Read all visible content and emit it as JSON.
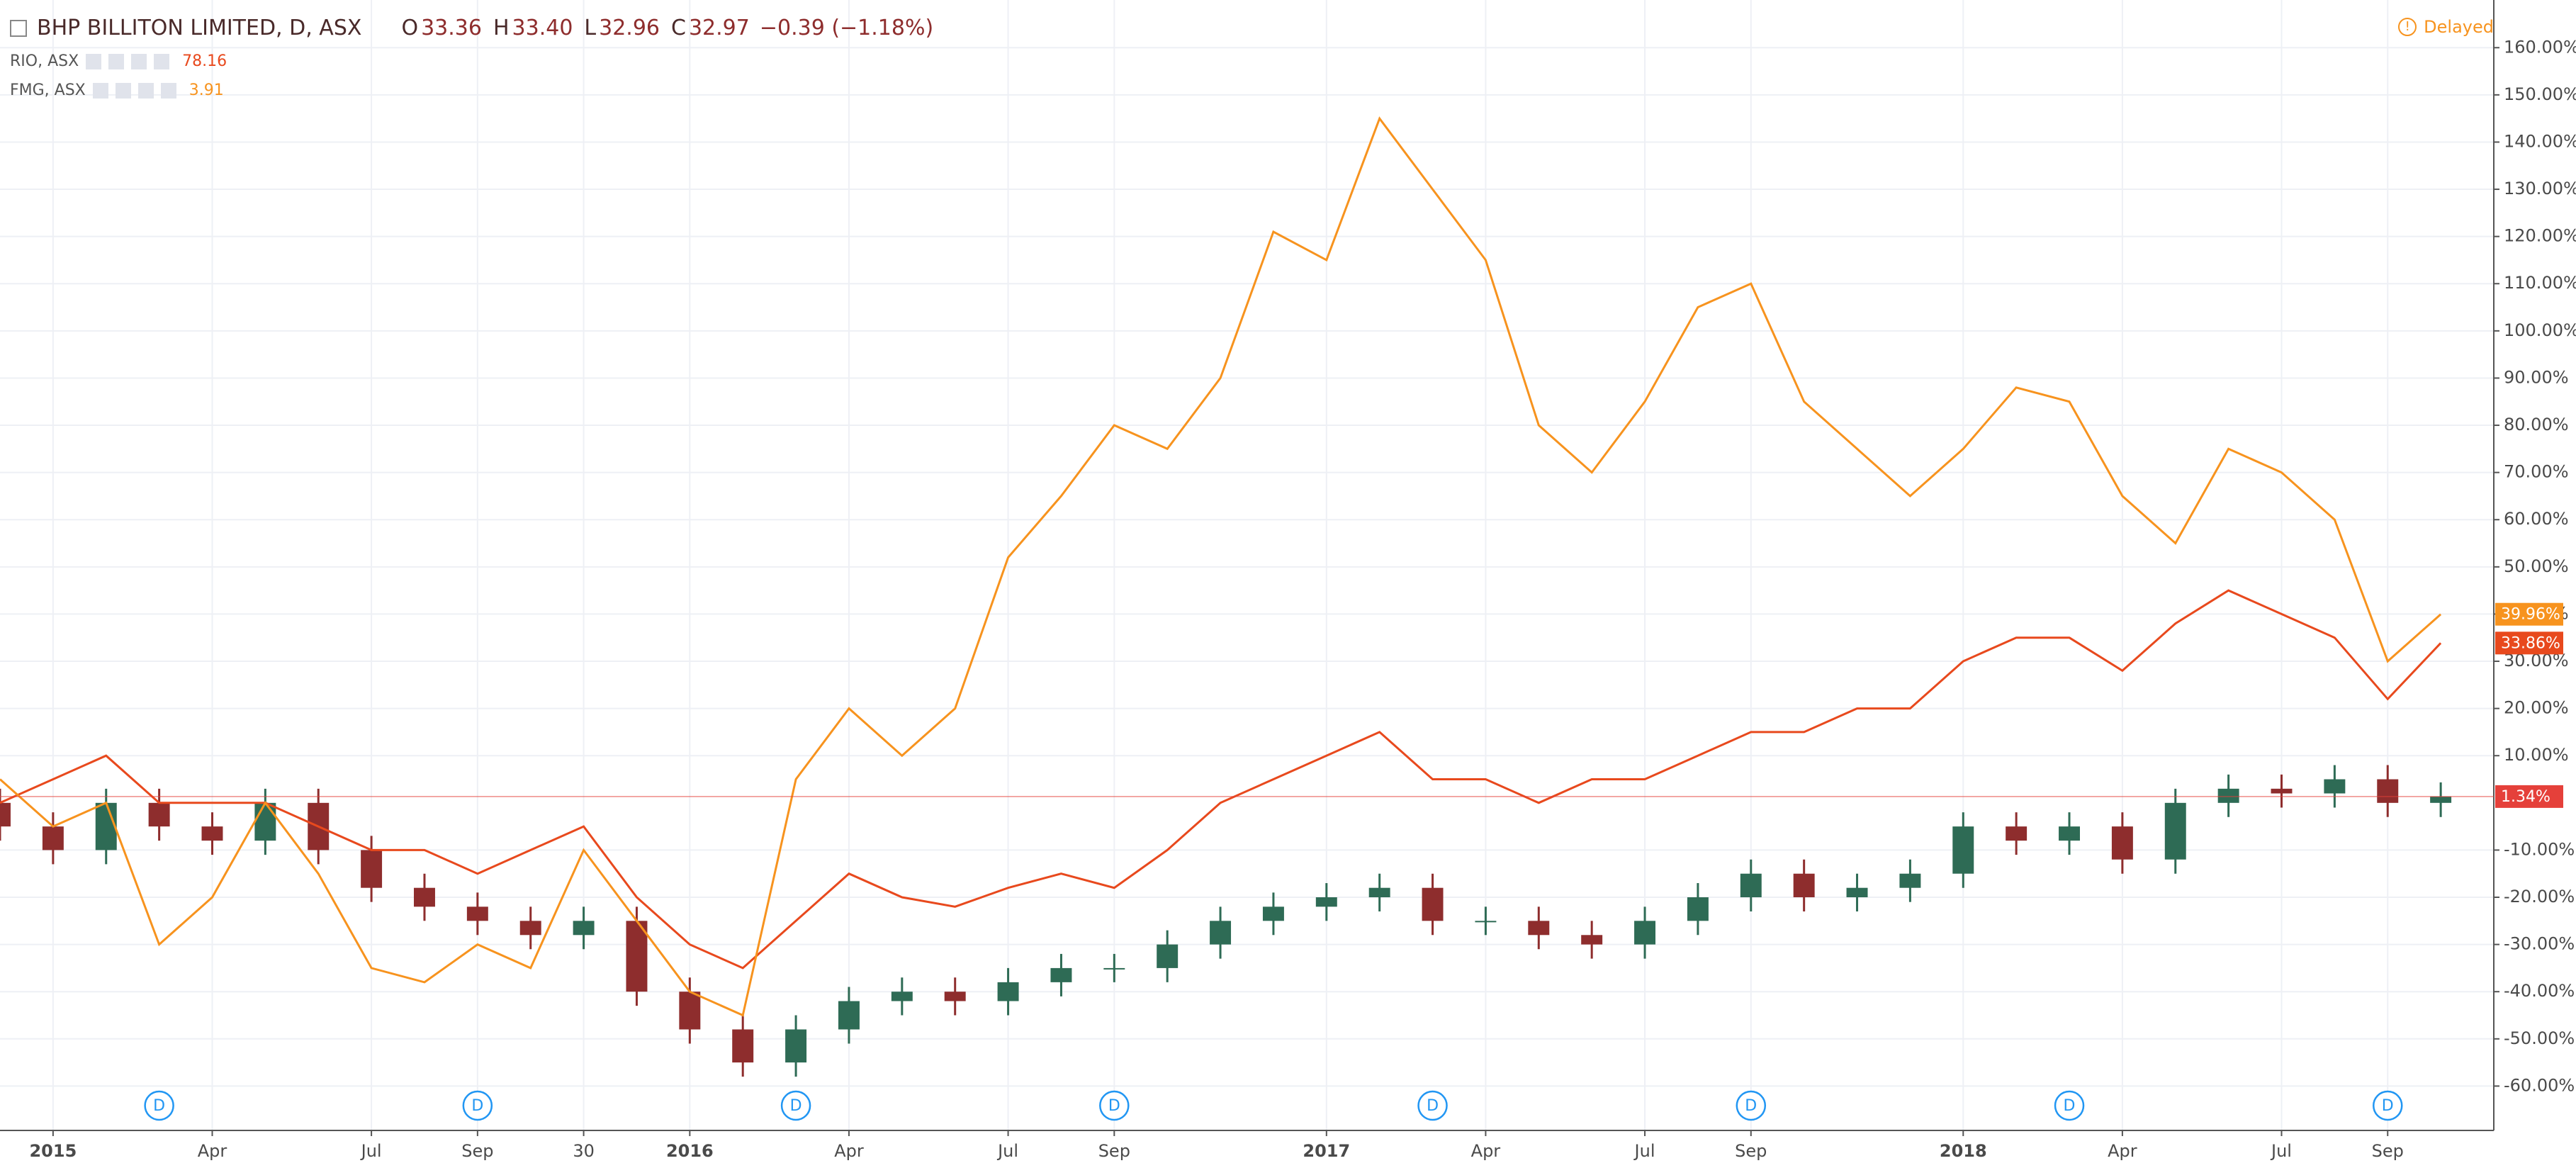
{
  "chart_data": {
    "type": "line",
    "title": "BHP BILLITON LIMITED, D, ASX",
    "ohlc_letters": [
      "O",
      "H",
      "L",
      "C"
    ],
    "ohlc_values": [
      33.36,
      {
        "value": 33.4,
        "label": "33.40"
      },
      32.96,
      32.97
    ],
    "change": "−0.39 (−1.18%)",
    "status": "Delayed",
    "x": [
      "2014-12",
      "2015-01",
      "2015-02",
      "2015-03",
      "2015-04",
      "2015-05",
      "2015-06",
      "2015-07",
      "2015-08",
      "2015-09",
      "2015-10",
      "2015-11",
      "2015-12",
      "2016-01",
      "2016-02",
      "2016-03",
      "2016-04",
      "2016-05",
      "2016-06",
      "2016-07",
      "2016-08",
      "2016-09",
      "2016-10",
      "2016-11",
      "2016-12",
      "2017-01",
      "2017-02",
      "2017-03",
      "2017-04",
      "2017-05",
      "2017-06",
      "2017-07",
      "2017-08",
      "2017-09",
      "2017-10",
      "2017-11",
      "2017-12",
      "2018-01",
      "2018-02",
      "2018-03",
      "2018-04",
      "2018-05",
      "2018-06",
      "2018-07",
      "2018-08",
      "2018-09",
      "2018-10"
    ],
    "xlim": [
      "2014-12",
      "2018-11"
    ],
    "xticks": [
      {
        "value": "2015-01",
        "label": "2015"
      },
      {
        "value": "2015-04",
        "label": "Apr"
      },
      {
        "value": "2015-07",
        "label": "Jul"
      },
      {
        "value": "2015-09",
        "label": "Sep"
      },
      {
        "value": "2015-11",
        "label": "30"
      },
      {
        "value": "2016-01",
        "label": "2016"
      },
      {
        "value": "2016-04",
        "label": "Apr"
      },
      {
        "value": "2016-07",
        "label": "Jul"
      },
      {
        "value": "2016-09",
        "label": "Sep"
      },
      {
        "value": "2017-01",
        "label": "2017"
      },
      {
        "value": "2017-04",
        "label": "Apr"
      },
      {
        "value": "2017-07",
        "label": "Jul"
      },
      {
        "value": "2017-09",
        "label": "Sep"
      },
      {
        "value": "2018-01",
        "label": "2018"
      },
      {
        "value": "2018-04",
        "label": "Apr"
      },
      {
        "value": "2018-07",
        "label": "Jul"
      },
      {
        "value": "2018-09",
        "label": "Sep"
      }
    ],
    "ylim": [
      -69.4,
      170.1
    ],
    "yticks": [
      {
        "value": -60,
        "label": "-60.00%"
      },
      {
        "value": -50,
        "label": "-50.00%"
      },
      {
        "value": -40,
        "label": "-40.00%"
      },
      {
        "value": -30,
        "label": "-30.00%"
      },
      {
        "value": -20,
        "label": "-20.00%"
      },
      {
        "value": -10,
        "label": "-10.00%"
      },
      {
        "value": 10,
        "label": "10.00%"
      },
      {
        "value": 20,
        "label": "20.00%"
      },
      {
        "value": 30,
        "label": "30.00%"
      },
      {
        "value": 40,
        "label": "40.00%"
      },
      {
        "value": 50,
        "label": "50.00%"
      },
      {
        "value": 60,
        "label": "60.00%"
      },
      {
        "value": 70,
        "label": "70.00%"
      },
      {
        "value": 80,
        "label": "80.00%"
      },
      {
        "value": 90,
        "label": "90.00%"
      },
      {
        "value": 100,
        "label": "100.00%"
      },
      {
        "value": 110,
        "label": "110.00%"
      },
      {
        "value": 120,
        "label": "120.00%"
      },
      {
        "value": 130,
        "label": "130.00%"
      },
      {
        "value": 140,
        "label": "140.00%"
      },
      {
        "value": 150,
        "label": "150.00%"
      },
      {
        "value": 160,
        "label": "160.00%"
      }
    ],
    "grid": true,
    "series": [
      {
        "type": "candlestick",
        "up_color": "#2e6b55",
        "down_color": "#8e2d2d",
        "open": [
          0,
          -5,
          -10,
          0,
          -5,
          -8,
          0,
          -10,
          -18,
          -22,
          -25,
          -28,
          -25,
          -40,
          -48,
          -55,
          -48,
          -42,
          -40,
          -42,
          -38,
          -35,
          -35,
          -30,
          -25,
          -22,
          -20,
          -18,
          -25,
          -25,
          -28,
          -30,
          -25,
          -20,
          -15,
          -20,
          -18,
          -15,
          -5,
          -8,
          -5,
          -12,
          0,
          3,
          2,
          5,
          0
        ],
        "high": [
          3,
          -2,
          3,
          3,
          -2,
          3,
          3,
          -7,
          -15,
          -19,
          -22,
          -22,
          -22,
          -37,
          -45,
          -45,
          -39,
          -37,
          -37,
          -35,
          -32,
          -32,
          -27,
          -22,
          -19,
          -17,
          -15,
          -15,
          -22,
          -22,
          -25,
          -22,
          -17,
          -12,
          -12,
          -15,
          -12,
          -2,
          -2,
          -2,
          -2,
          3,
          6,
          6,
          8,
          8,
          4.34
        ],
        "low": [
          -8,
          -13,
          -13,
          -8,
          -11,
          -11,
          -13,
          -21,
          -25,
          -28,
          -31,
          -31,
          -43,
          -51,
          -58,
          -58,
          -51,
          -45,
          -45,
          -45,
          -41,
          -38,
          -38,
          -33,
          -28,
          -25,
          -23,
          -28,
          -28,
          -31,
          -33,
          -33,
          -28,
          -23,
          -23,
          -23,
          -21,
          -18,
          -11,
          -11,
          -15,
          -15,
          -3,
          -1,
          -1,
          -3,
          -3
        ],
        "close": [
          -5,
          -10,
          0,
          -5,
          -8,
          0,
          -10,
          -18,
          -22,
          -25,
          -28,
          -25,
          -40,
          -48,
          -55,
          -48,
          -42,
          -40,
          -42,
          -38,
          -35,
          -35,
          -30,
          -25,
          -22,
          -20,
          -18,
          -25,
          -25,
          -28,
          -30,
          -25,
          -20,
          -15,
          -20,
          -18,
          -15,
          -5,
          -8,
          -5,
          -12,
          0,
          3,
          2,
          5,
          0,
          1.34
        ],
        "price_tag": {
          "value": 1.34,
          "label": "1.34%",
          "color": "#e5403a"
        }
      },
      {
        "type": "line",
        "name": "RIO, ASX",
        "last": 78.16,
        "color": "#e8491d",
        "values": [
          0,
          5,
          10,
          0,
          0,
          0,
          -5,
          -10,
          -10,
          -15,
          -10,
          -5,
          -20,
          -30,
          -35,
          -25,
          -15,
          -20,
          -22,
          -18,
          -15,
          -18,
          -10,
          0,
          5,
          10,
          15,
          5,
          5,
          0,
          5,
          5,
          10,
          15,
          15,
          20,
          20,
          30,
          35,
          35,
          28,
          38,
          45,
          40,
          35,
          22,
          33.86
        ],
        "price_tag": {
          "value": 33.86,
          "label": "33.86%",
          "color": "#e8491d"
        }
      },
      {
        "type": "line",
        "name": "FMG, ASX",
        "last": 3.91,
        "color": "#f7931e",
        "values": [
          5,
          -5,
          0,
          -30,
          -20,
          0,
          -15,
          -35,
          -38,
          -30,
          -35,
          -10,
          -25,
          -40,
          -45,
          5,
          20,
          10,
          20,
          52,
          65,
          80,
          75,
          90,
          121,
          115,
          145,
          130,
          115,
          80,
          70,
          85,
          105,
          110,
          85,
          75,
          65,
          75,
          88,
          85,
          65,
          55,
          75,
          70,
          60,
          30,
          39.96
        ],
        "price_tag": {
          "value": 39.96,
          "label": "39.96%",
          "color": "#f7931e"
        }
      }
    ],
    "events": {
      "label": "D",
      "color": "#2196f3",
      "x": [
        "2015-03",
        "2015-09",
        "2016-03",
        "2016-09",
        "2017-03",
        "2017-09",
        "2018-03",
        "2018-09"
      ]
    }
  }
}
